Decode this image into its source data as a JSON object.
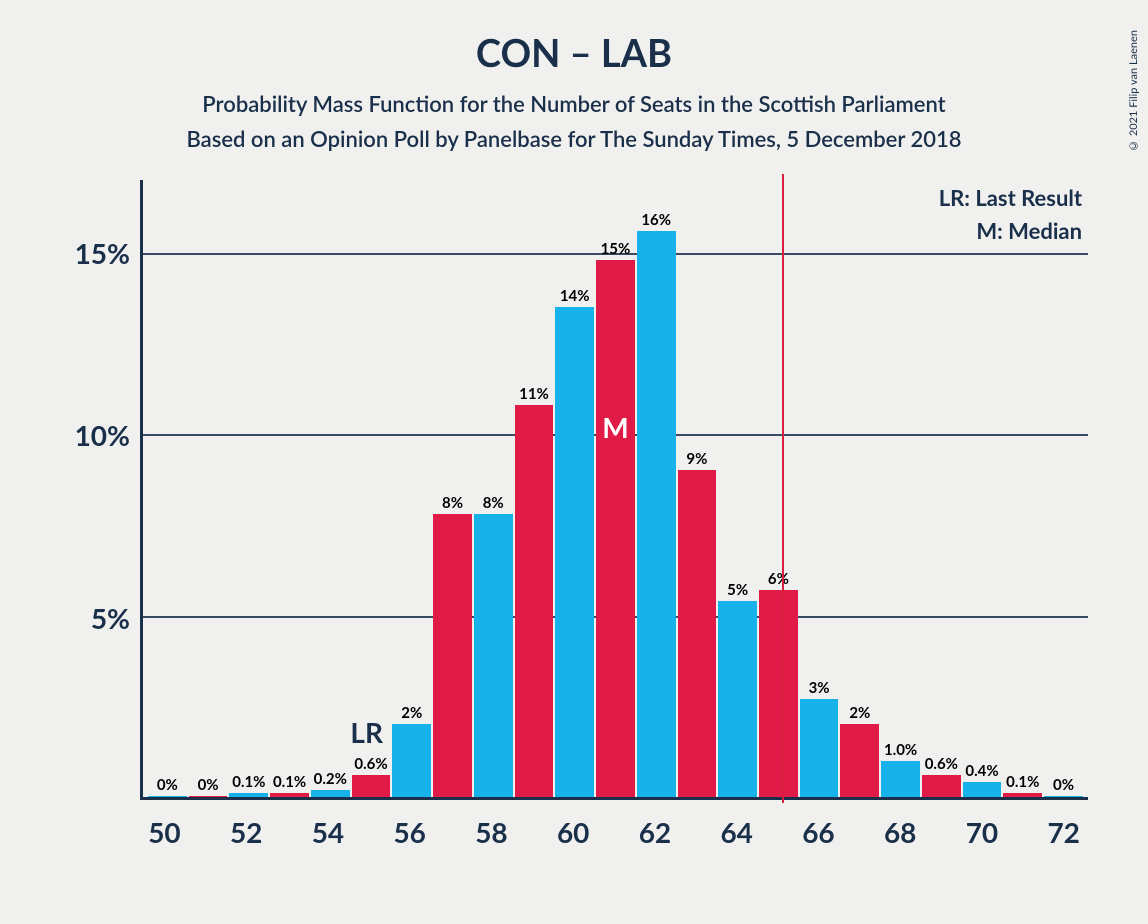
{
  "copyright": "© 2021 Filip van Laenen",
  "title": "CON – LAB",
  "subtitle1": "Probability Mass Function for the Number of Seats in the Scottish Parliament",
  "subtitle2": "Based on an Opinion Poll by Panelbase for The Sunday Times, 5 December 2018",
  "legend_lr": "LR: Last Result",
  "legend_m": "M: Median",
  "lr_marker": "LR",
  "m_marker": "M",
  "chart": {
    "type": "bar",
    "background_color": "#f0f0ee",
    "axis_color": "#1a2f4a",
    "text_color": "#1a2f4a",
    "title_fontsize": 38,
    "subtitle_fontsize": 22,
    "tick_fontsize": 28,
    "barlabel_fontsize": 15,
    "y_max": 17.0,
    "y_ticks": [
      5,
      10,
      15
    ],
    "y_tick_labels": [
      "5%",
      "10%",
      "15%"
    ],
    "x_ticks": [
      50,
      52,
      54,
      56,
      58,
      60,
      62,
      64,
      66,
      68,
      70,
      72
    ],
    "x_tick_labels": [
      "50",
      "52",
      "54",
      "56",
      "58",
      "60",
      "62",
      "64",
      "66",
      "68",
      "70",
      "72"
    ],
    "colors": {
      "red": "#e01b48",
      "blue": "#18b2ea"
    },
    "median_line_x": 65,
    "median_line_color": "#d91e3f",
    "lr_position_x": 55,
    "m_position_x": 61,
    "bars": [
      {
        "x": 50,
        "v": 0.03,
        "c": "blue",
        "label": "0%"
      },
      {
        "x": 51,
        "v": 0.03,
        "c": "red",
        "label": "0%"
      },
      {
        "x": 52,
        "v": 0.1,
        "c": "blue",
        "label": "0.1%"
      },
      {
        "x": 53,
        "v": 0.1,
        "c": "red",
        "label": "0.1%"
      },
      {
        "x": 54,
        "v": 0.2,
        "c": "blue",
        "label": "0.2%"
      },
      {
        "x": 55,
        "v": 0.6,
        "c": "red",
        "label": "0.6%"
      },
      {
        "x": 56,
        "v": 2.0,
        "c": "blue",
        "label": "2%"
      },
      {
        "x": 57,
        "v": 7.8,
        "c": "red",
        "label": "8%"
      },
      {
        "x": 58,
        "v": 7.8,
        "c": "blue",
        "label": "8%"
      },
      {
        "x": 59,
        "v": 10.8,
        "c": "red",
        "label": "11%"
      },
      {
        "x": 60,
        "v": 13.5,
        "c": "blue",
        "label": "14%"
      },
      {
        "x": 61,
        "v": 14.8,
        "c": "red",
        "label": "15%"
      },
      {
        "x": 62,
        "v": 15.6,
        "c": "blue",
        "label": "16%"
      },
      {
        "x": 63,
        "v": 9.0,
        "c": "red",
        "label": "9%"
      },
      {
        "x": 64,
        "v": 5.4,
        "c": "blue",
        "label": "5%"
      },
      {
        "x": 65,
        "v": 5.7,
        "c": "red",
        "label": "6%"
      },
      {
        "x": 66,
        "v": 2.7,
        "c": "blue",
        "label": "3%"
      },
      {
        "x": 67,
        "v": 2.0,
        "c": "red",
        "label": "2%"
      },
      {
        "x": 68,
        "v": 1.0,
        "c": "blue",
        "label": "1.0%"
      },
      {
        "x": 69,
        "v": 0.6,
        "c": "red",
        "label": "0.6%"
      },
      {
        "x": 70,
        "v": 0.4,
        "c": "blue",
        "label": "0.4%"
      },
      {
        "x": 71,
        "v": 0.1,
        "c": "red",
        "label": "0.1%"
      },
      {
        "x": 72,
        "v": 0.03,
        "c": "blue",
        "label": "0%"
      }
    ]
  }
}
